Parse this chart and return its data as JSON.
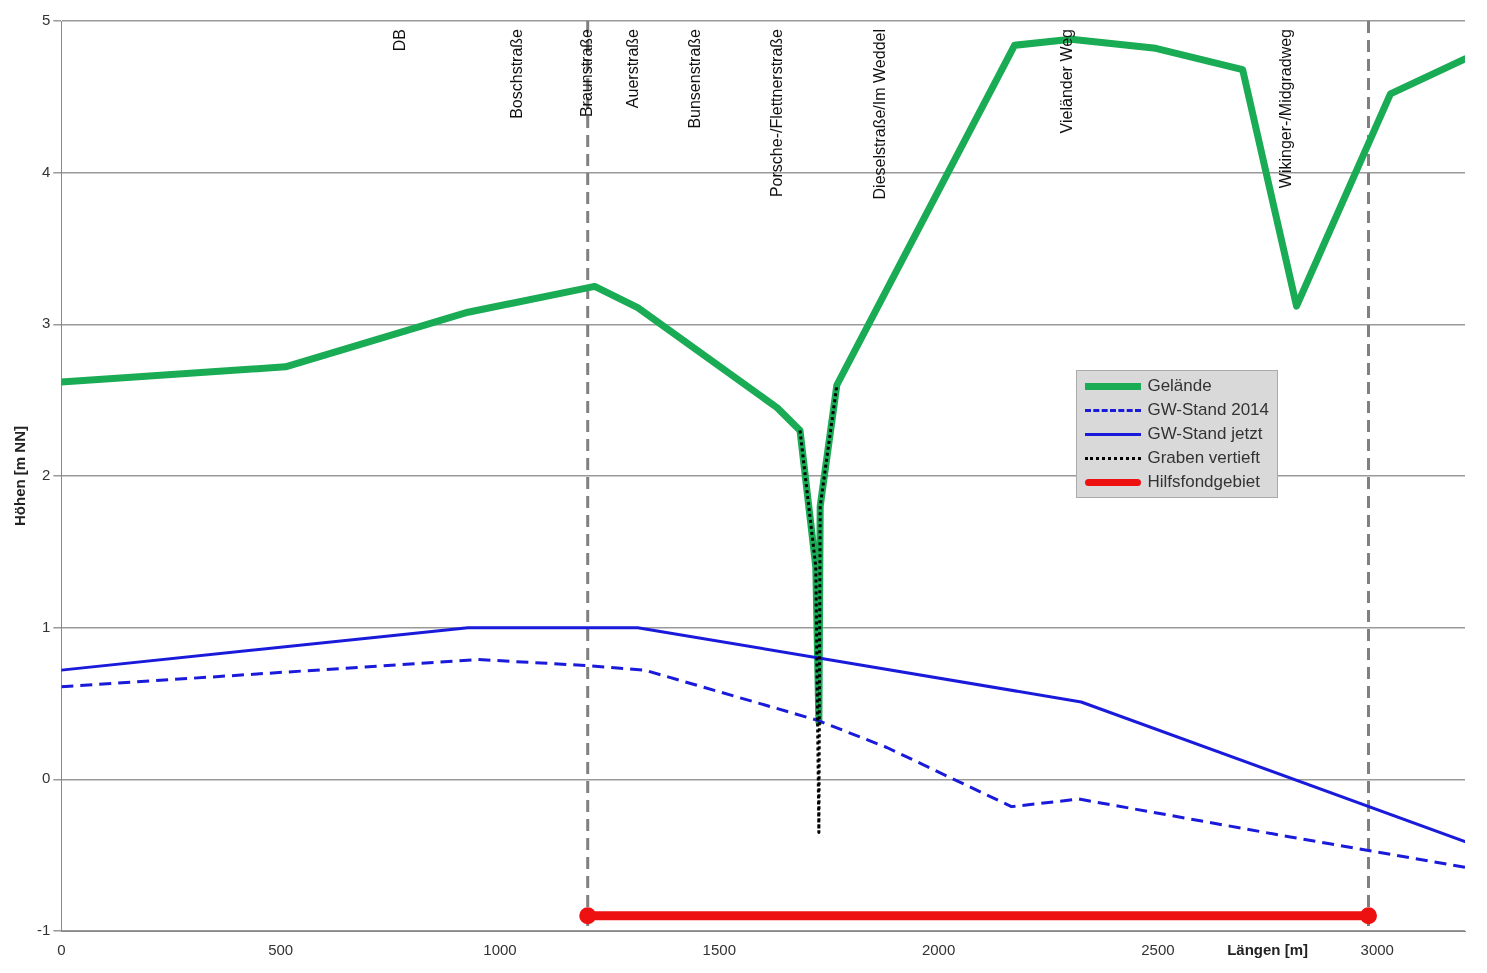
{
  "chart_data": {
    "type": "line",
    "xlabel": "Längen [m]",
    "ylabel": "Höhen [m NN]",
    "xlim": [
      0,
      3200
    ],
    "xticks": [
      0,
      500,
      1000,
      1500,
      2000,
      2500,
      3000
    ],
    "ylim": [
      -1,
      5
    ],
    "yticks": [
      -1,
      0,
      1,
      2,
      3,
      4,
      5
    ],
    "grid": "y",
    "legend": "right",
    "marker": "none",
    "series": [
      {
        "name": "Gelände",
        "color": "#1aab55",
        "line_style": "solid",
        "x": [
          0,
          511,
          927,
          1216,
          1314,
          1632,
          1684,
          1720,
          1727,
          1730,
          1768,
          2173,
          2302,
          2495,
          2693,
          2816,
          3030,
          3200
        ],
        "values": [
          2.62,
          2.72,
          3.08,
          3.25,
          3.11,
          2.45,
          2.3,
          1.4,
          0.38,
          1.8,
          2.6,
          4.84,
          4.88,
          4.82,
          4.68,
          3.12,
          4.52,
          4.75
        ]
      },
      {
        "name": "GW-Stand 2014",
        "color": "#1a1adb",
        "line_style": "dashed",
        "x": [
          0,
          950,
          1200,
          1330,
          1723,
          1882,
          2166,
          2320,
          2802,
          3200
        ],
        "values": [
          0.61,
          0.79,
          0.75,
          0.72,
          0.39,
          0.21,
          -0.18,
          -0.13,
          -0.38,
          -0.58
        ]
      },
      {
        "name": "GW-Stand jetzt",
        "color": "#1a1adb",
        "line_style": "solid",
        "x": [
          0,
          927,
          1314,
          2325,
          3200
        ],
        "values": [
          0.72,
          1.0,
          1.0,
          0.51,
          -0.41
        ]
      },
      {
        "name": "Graben vertieft",
        "color": "#000000",
        "line_style": "dotted",
        "x": [
          1684,
          1720,
          1727,
          1730,
          1768
        ],
        "values": [
          2.3,
          1.4,
          -0.35,
          1.8,
          2.6
        ]
      },
      {
        "name": "Hilfsfondgebiet",
        "color": "#ee1111",
        "line_style": "solid",
        "marker": "circle",
        "x": [
          1200,
          2980
        ],
        "values": [
          -0.9,
          -0.9
        ]
      }
    ],
    "ref_lines": [
      {
        "axis": "x",
        "value": 1200,
        "color": "#808080",
        "line_style": "dashed"
      },
      {
        "axis": "x",
        "value": 2980,
        "color": "#808080",
        "line_style": "dashed"
      }
    ],
    "annotations": [
      "DB",
      "Boschstraße",
      "Braunstraße",
      "Auerstraße",
      "Bunsenstraße",
      "Porsche-/Flettnerstraße",
      "Dieselstraße/Im Weddel",
      "Vieländer Weg",
      "Wikinger-/Midgradweg"
    ]
  }
}
